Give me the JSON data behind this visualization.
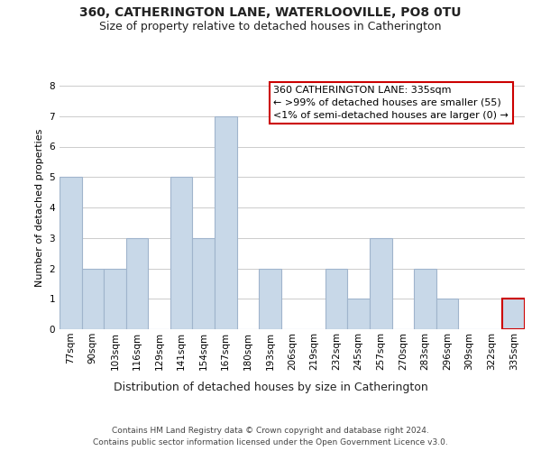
{
  "title": "360, CATHERINGTON LANE, WATERLOOVILLE, PO8 0TU",
  "subtitle": "Size of property relative to detached houses in Catherington",
  "xlabel": "Distribution of detached houses by size in Catherington",
  "ylabel": "Number of detached properties",
  "footer_line1": "Contains HM Land Registry data © Crown copyright and database right 2024.",
  "footer_line2": "Contains public sector information licensed under the Open Government Licence v3.0.",
  "bin_labels": [
    "77sqm",
    "90sqm",
    "103sqm",
    "116sqm",
    "129sqm",
    "141sqm",
    "154sqm",
    "167sqm",
    "180sqm",
    "193sqm",
    "206sqm",
    "219sqm",
    "232sqm",
    "245sqm",
    "257sqm",
    "270sqm",
    "283sqm",
    "296sqm",
    "309sqm",
    "322sqm",
    "335sqm"
  ],
  "bar_heights": [
    5,
    2,
    2,
    3,
    0,
    5,
    3,
    7,
    0,
    2,
    0,
    0,
    2,
    1,
    3,
    0,
    2,
    1,
    0,
    0,
    1
  ],
  "bar_color": "#c8d8e8",
  "bar_edge_color": "#a0b4cc",
  "highlight_bar_index": 20,
  "highlight_bar_edge_color": "#cc0000",
  "ylim": [
    0,
    8
  ],
  "yticks": [
    0,
    1,
    2,
    3,
    4,
    5,
    6,
    7,
    8
  ],
  "annotation_line1": "360 CATHERINGTON LANE: 335sqm",
  "annotation_line2": "← >99% of detached houses are smaller (55)",
  "annotation_line3": "<1% of semi-detached houses are larger (0) →",
  "annotation_box_edge_color": "#cc0000",
  "annotation_box_facecolor": "#ffffff",
  "grid_color": "#cccccc",
  "background_color": "#ffffff",
  "title_fontsize": 10,
  "subtitle_fontsize": 9,
  "ylabel_fontsize": 8,
  "xlabel_fontsize": 9,
  "tick_fontsize": 7.5,
  "footer_fontsize": 6.5,
  "annot_fontsize": 8
}
